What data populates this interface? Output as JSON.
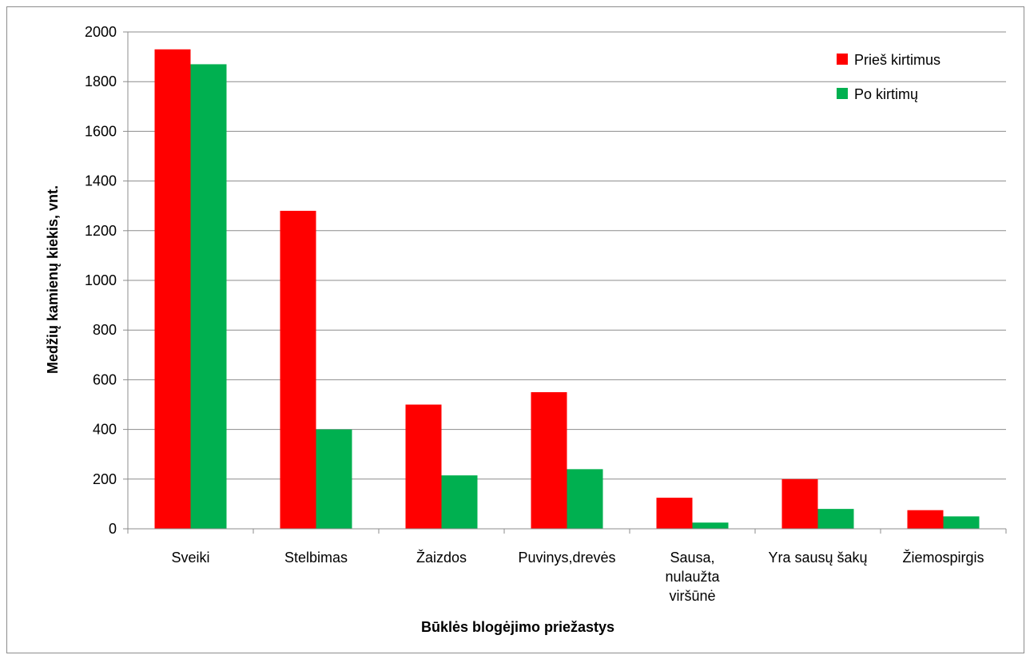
{
  "chart_data": {
    "type": "bar",
    "title": "",
    "xlabel": "Būklės blogėjimo priežastys",
    "ylabel": "Medžių kamienų kiekis, vnt.",
    "ylim": [
      0,
      2000
    ],
    "ytick_step": 200,
    "yticks": [
      "0",
      "200",
      "400",
      "600",
      "800",
      "1000",
      "1200",
      "1400",
      "1600",
      "1800",
      "2000"
    ],
    "grid": "horizontal",
    "legend_position": "top-right",
    "categories": [
      [
        "Sveiki"
      ],
      [
        "Stelbimas"
      ],
      [
        "Žaizdos"
      ],
      [
        "Puvinys,drevės"
      ],
      [
        "Sausa,",
        "nulaužta",
        "viršūnė"
      ],
      [
        "Yra sausų šakų"
      ],
      [
        "Žiemospirgis"
      ]
    ],
    "series": [
      {
        "name": "Prieš kirtimus",
        "color": "#ff0000",
        "values": [
          1930,
          1280,
          500,
          550,
          125,
          200,
          75
        ]
      },
      {
        "name": "Po kirtimų",
        "color": "#00b050",
        "values": [
          1870,
          400,
          215,
          240,
          25,
          80,
          50
        ]
      }
    ]
  }
}
